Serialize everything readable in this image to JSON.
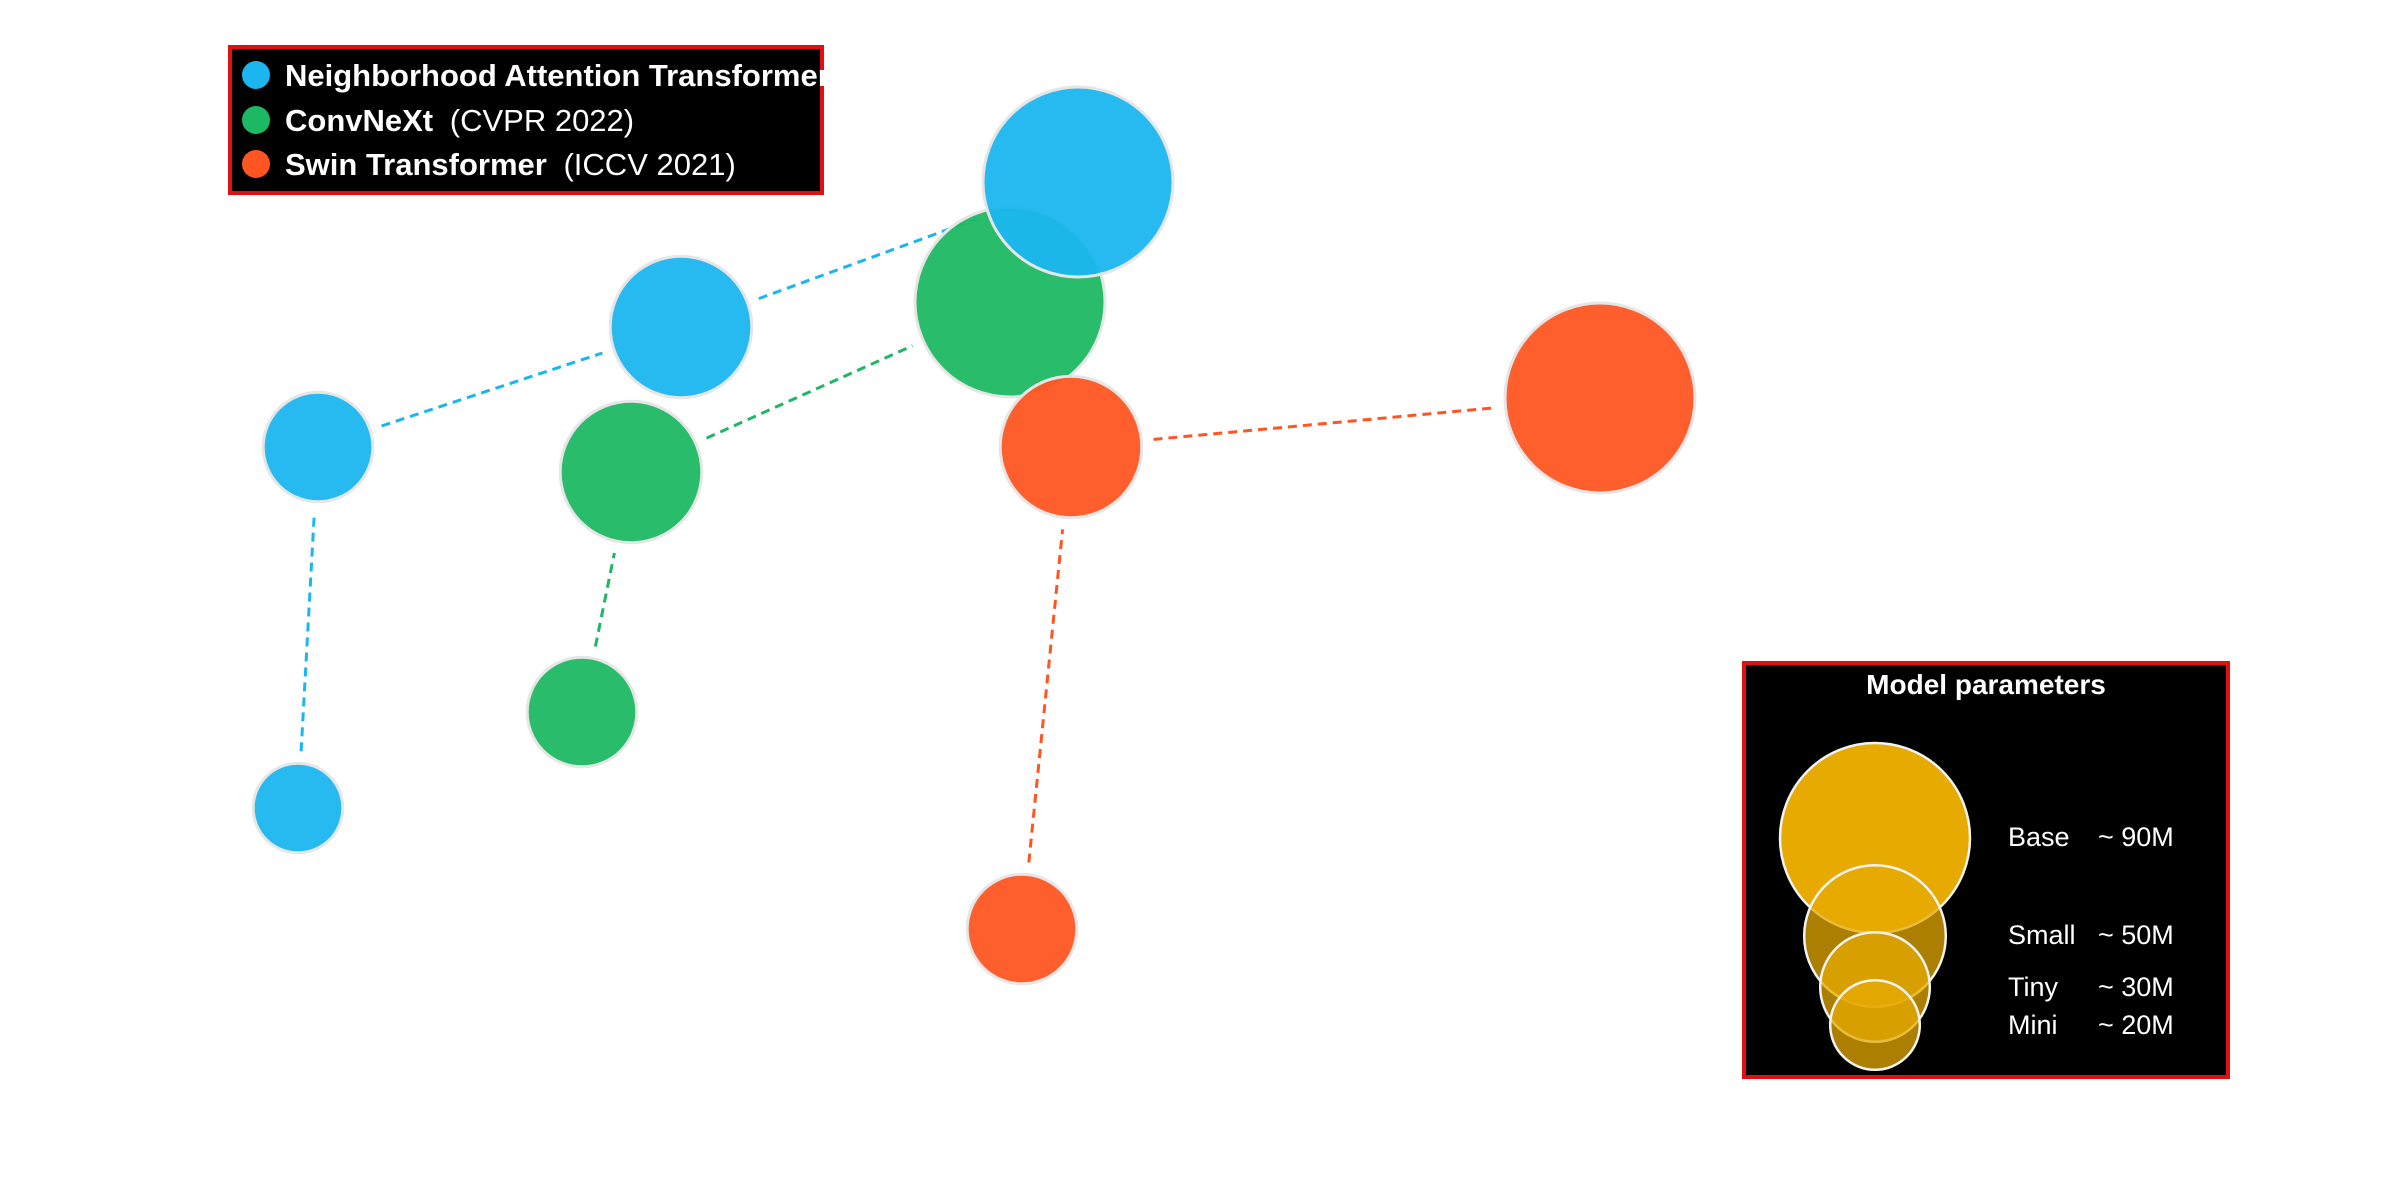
{
  "chart_data": {
    "type": "scatter",
    "title": "",
    "xlabel": "",
    "ylabel": "",
    "grid": false,
    "legend_position": "top-left",
    "series": [
      {
        "name": "Neighborhood Attention Transformer",
        "venue": "",
        "color": "#1BB6F0",
        "points": [
          {
            "size_label": "Mini",
            "params_m": 20
          },
          {
            "size_label": "Tiny",
            "params_m": 30
          },
          {
            "size_label": "Small",
            "params_m": 50
          },
          {
            "size_label": "Base",
            "params_m": 90
          }
        ]
      },
      {
        "name": "ConvNeXt",
        "venue": "(CVPR 2022)",
        "color": "#1DB863",
        "points": [
          {
            "size_label": "Tiny",
            "params_m": 30
          },
          {
            "size_label": "Small",
            "params_m": 50
          },
          {
            "size_label": "Base",
            "params_m": 90
          }
        ]
      },
      {
        "name": "Swin Transformer",
        "venue": "(ICCV 2021)",
        "color": "#FF5522",
        "points": [
          {
            "size_label": "Tiny",
            "params_m": 30
          },
          {
            "size_label": "Small",
            "params_m": 50
          },
          {
            "size_label": "Base",
            "params_m": 90
          }
        ]
      }
    ],
    "size_legend": {
      "title": "Model parameters",
      "color": "#E6AA00",
      "entries": [
        {
          "label": "Base",
          "value": "~ 90M"
        },
        {
          "label": "Small",
          "value": "~ 50M"
        },
        {
          "label": "Tiny",
          "value": "~ 30M"
        },
        {
          "label": "Mini",
          "value": "~ 20M"
        }
      ]
    }
  }
}
